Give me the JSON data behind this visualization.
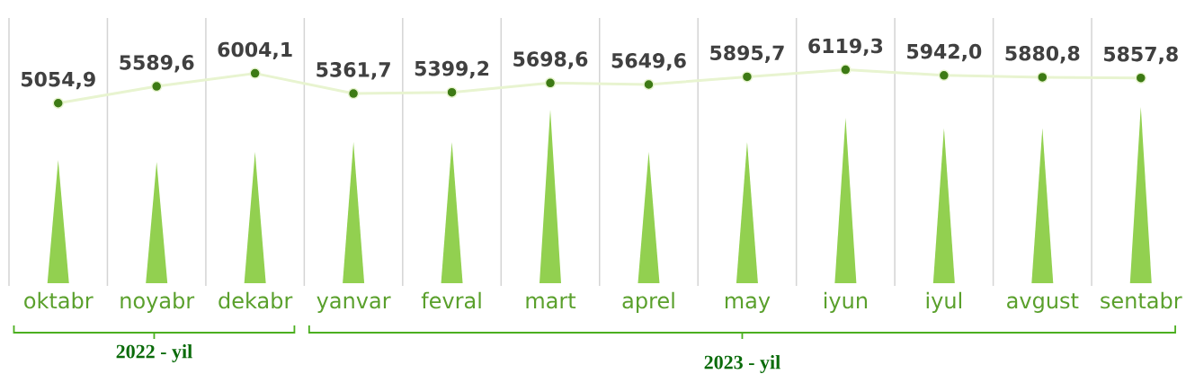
{
  "chart_data": {
    "type": "line",
    "categories": [
      "oktabr",
      "noyabr",
      "dekabr",
      "yanvar",
      "fevral",
      "mart",
      "aprel",
      "may",
      "iyun",
      "iyul",
      "avgust",
      "sentabr"
    ],
    "series": [
      {
        "color": "#3d7a14",
        "values": [
          5054.9,
          5589.6,
          6004.1,
          5361.7,
          5399.2,
          5698.6,
          5649.6,
          5895.7,
          6119.3,
          5942.0,
          5880.8,
          5857.8
        ],
        "value_labels": [
          "5054,9",
          "5589,6",
          "6004,1",
          "5361,7",
          "5399,2",
          "5698,6",
          "5649,6",
          "5895,7",
          "6119,3",
          "5942,0",
          "5880,8",
          "5857,8"
        ]
      }
    ],
    "ylim": [
      -770,
      7770
    ],
    "marker": "circle",
    "line_style": "solid",
    "grid": "x",
    "annotations": [
      "2022 - yil",
      "2023 - yil"
    ]
  }
}
